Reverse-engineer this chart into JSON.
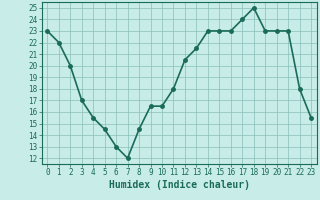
{
  "x": [
    0,
    1,
    2,
    3,
    4,
    5,
    6,
    7,
    8,
    9,
    10,
    11,
    12,
    13,
    14,
    15,
    16,
    17,
    18,
    19,
    20,
    21,
    22,
    23
  ],
  "y": [
    23,
    22,
    20,
    17,
    15.5,
    14.5,
    13,
    12,
    14.5,
    16.5,
    16.5,
    18,
    20.5,
    21.5,
    23,
    23,
    23,
    24,
    25,
    23,
    23,
    23,
    18,
    15.5
  ],
  "line_color": "#1a6b5a",
  "marker": "o",
  "marker_size": 2.5,
  "bg_color": "#c8ece8",
  "grid_color": "#8abfba",
  "axis_color": "#1a6b5a",
  "xlabel": "Humidex (Indice chaleur)",
  "xlim": [
    -0.5,
    23.5
  ],
  "ylim": [
    11.5,
    25.5
  ],
  "yticks": [
    12,
    13,
    14,
    15,
    16,
    17,
    18,
    19,
    20,
    21,
    22,
    23,
    24,
    25
  ],
  "xticks": [
    0,
    1,
    2,
    3,
    4,
    5,
    6,
    7,
    8,
    9,
    10,
    11,
    12,
    13,
    14,
    15,
    16,
    17,
    18,
    19,
    20,
    21,
    22,
    23
  ],
  "xtick_labels": [
    "0",
    "1",
    "2",
    "3",
    "4",
    "5",
    "6",
    "7",
    "8",
    "9",
    "10",
    "11",
    "12",
    "13",
    "14",
    "15",
    "16",
    "17",
    "18",
    "19",
    "20",
    "21",
    "22",
    "23"
  ],
  "xlabel_fontsize": 7,
  "tick_fontsize": 5.5,
  "line_width": 1.2
}
